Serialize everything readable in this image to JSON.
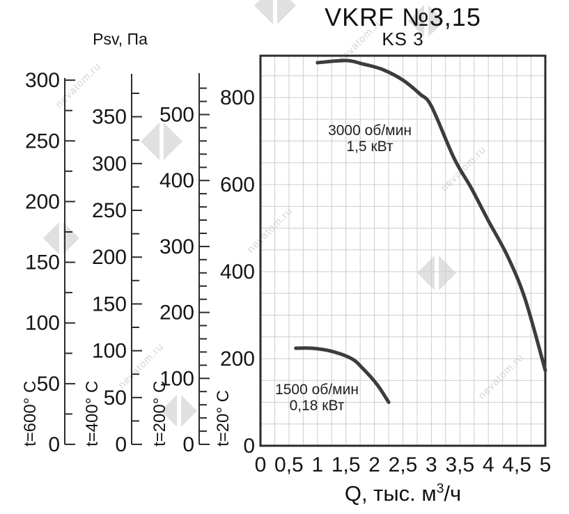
{
  "title": "VKRF №3,15",
  "subtitle": "KS 3",
  "pressure_axis_title": "Psv, Па",
  "flow_axis_title": {
    "main": "Q, тыс. м",
    "sup": "3",
    "tail": "/ч"
  },
  "watermark_text": "nevatom.ru",
  "colors": {
    "curve": "#3c3c3c",
    "axis": "#2b2b2b",
    "grid": "#cccccc",
    "text": "#151515",
    "watermark": "#e0e0e0"
  },
  "chart_data": {
    "type": "line",
    "title": "VKRF №3,15",
    "subtitle": "KS 3",
    "xlabel": "Q, тыс. м³/ч",
    "ylabel": "Psv, Па",
    "xlim": [
      0,
      5
    ],
    "ylim": [
      0,
      896
    ],
    "grid": true,
    "grid_minor_x_step": 0.25,
    "grid_minor_y_step": 50,
    "x_tick_values": [
      0,
      0.5,
      1,
      1.5,
      2,
      2.5,
      3,
      3.5,
      4,
      4.5,
      5
    ],
    "x_tick_labels": [
      "0",
      "0,5",
      "1",
      "1,5",
      "2",
      "2,5",
      "3",
      "3,5",
      "4",
      "4,5",
      "5"
    ],
    "y_axes": [
      {
        "temperature": "t=600° C",
        "tick_values": [
          0,
          50,
          100,
          150,
          200,
          250,
          300
        ],
        "tick_labels": [
          "0",
          "50",
          "100",
          "150",
          "200",
          "250",
          "300"
        ],
        "minor_step": 25,
        "axis_max": 300
      },
      {
        "temperature": "t=400° C",
        "tick_values": [
          0,
          50,
          100,
          150,
          200,
          250,
          300,
          350
        ],
        "tick_labels": [
          "0",
          "50",
          "100",
          "150",
          "200",
          "250",
          "300",
          "350"
        ],
        "minor_step": 25,
        "axis_max": 375
      },
      {
        "temperature": "t=200° C",
        "tick_values": [
          0,
          100,
          200,
          300,
          400,
          500
        ],
        "tick_labels": [
          "0",
          "100",
          "200",
          "300",
          "400",
          "500"
        ],
        "minor_step": 20,
        "axis_max": 540
      },
      {
        "temperature": "t=20° C",
        "tick_values": [
          0,
          200,
          400,
          600,
          800
        ],
        "tick_labels": [
          "0",
          "200",
          "400",
          "600",
          "800"
        ],
        "minor_step": 50,
        "axis_max": 800
      }
    ],
    "series": [
      {
        "name": "3000 об/мин",
        "power": "1,5 кВт",
        "points": [
          [
            1.0,
            880
          ],
          [
            1.5,
            885
          ],
          [
            1.8,
            877
          ],
          [
            2.15,
            864
          ],
          [
            2.5,
            840
          ],
          [
            2.8,
            808
          ],
          [
            3.0,
            780
          ],
          [
            3.4,
            660
          ],
          [
            3.7,
            592
          ],
          [
            4.0,
            517
          ],
          [
            4.35,
            432
          ],
          [
            4.65,
            335
          ],
          [
            5.0,
            173
          ]
        ]
      },
      {
        "name": "1500 об/мин",
        "power": "0,18 кВт",
        "points": [
          [
            0.62,
            224
          ],
          [
            0.9,
            224
          ],
          [
            1.25,
            217
          ],
          [
            1.6,
            200
          ],
          [
            1.8,
            177
          ],
          [
            2.05,
            140
          ],
          [
            2.25,
            100
          ]
        ]
      }
    ]
  }
}
